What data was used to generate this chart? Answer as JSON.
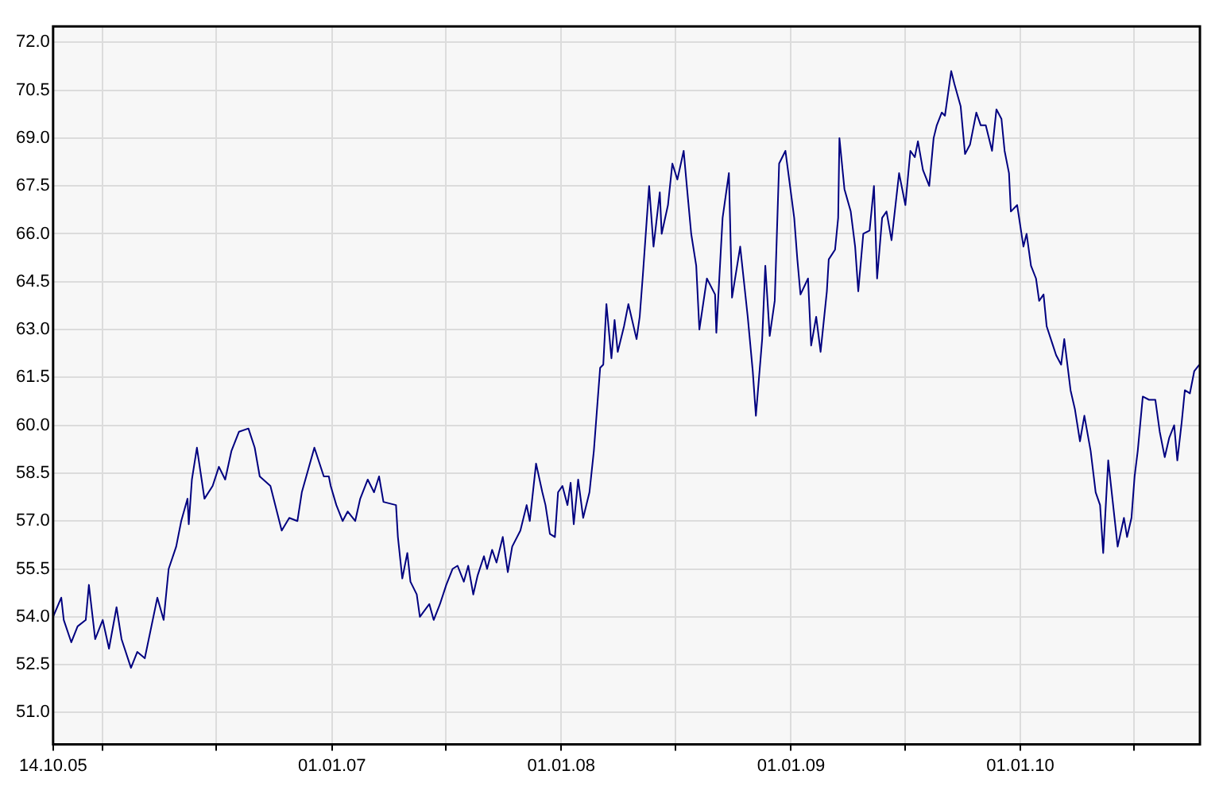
{
  "chart_data": {
    "type": "line",
    "grid": true,
    "xlim": [
      "2005-10-14",
      "2010-10-14"
    ],
    "ylim": [
      50,
      72.5
    ],
    "xticks": [
      {
        "value": "2005-10-14",
        "label": "14.10.05"
      },
      {
        "value": "2006-01-01",
        "label": null
      },
      {
        "value": "2006-07-01",
        "label": null
      },
      {
        "value": "2007-01-01",
        "label": "01.01.07"
      },
      {
        "value": "2007-07-01",
        "label": null
      },
      {
        "value": "2008-01-01",
        "label": "01.01.08"
      },
      {
        "value": "2008-07-01",
        "label": null
      },
      {
        "value": "2009-01-01",
        "label": "01.01.09"
      },
      {
        "value": "2009-07-01",
        "label": null
      },
      {
        "value": "2010-01-01",
        "label": "01.01.10"
      },
      {
        "value": "2010-07-01",
        "label": null
      }
    ],
    "yticks": [
      {
        "value": 51,
        "label": "51.0"
      },
      {
        "value": 52.5,
        "label": "52.5"
      },
      {
        "value": 54,
        "label": "54.0"
      },
      {
        "value": 55.5,
        "label": "55.5"
      },
      {
        "value": 57,
        "label": "57.0"
      },
      {
        "value": 58.5,
        "label": "58.5"
      },
      {
        "value": 60,
        "label": "60.0"
      },
      {
        "value": 61.5,
        "label": "61.5"
      },
      {
        "value": 63,
        "label": "63.0"
      },
      {
        "value": 64.5,
        "label": "64.5"
      },
      {
        "value": 66,
        "label": "66.0"
      },
      {
        "value": 67.5,
        "label": "67.5"
      },
      {
        "value": 69,
        "label": "69.0"
      },
      {
        "value": 70.5,
        "label": "70.5"
      },
      {
        "value": 72,
        "label": "72.0"
      }
    ],
    "x": [
      "2005-10-14",
      "2005-10-27",
      "2005-10-31",
      "2005-11-12",
      "2005-11-22",
      "2005-12-05",
      "2005-12-10",
      "2005-12-20",
      "2006-01-01",
      "2006-01-11",
      "2006-01-23",
      "2006-01-31",
      "2006-02-15",
      "2006-02-25",
      "2006-03-09",
      "2006-03-29",
      "2006-04-08",
      "2006-04-16",
      "2006-04-28",
      "2006-05-06",
      "2006-05-16",
      "2006-05-18",
      "2006-05-23",
      "2006-05-31",
      "2006-06-12",
      "2006-06-25",
      "2006-07-05",
      "2006-07-15",
      "2006-07-25",
      "2006-08-06",
      "2006-08-21",
      "2006-08-31",
      "2006-09-08",
      "2006-09-25",
      "2006-10-13",
      "2006-10-25",
      "2006-11-07",
      "2006-11-14",
      "2006-12-04",
      "2006-12-19",
      "2006-12-27",
      "2006-12-30",
      "2007-01-08",
      "2007-01-18",
      "2007-01-26",
      "2007-02-07",
      "2007-02-15",
      "2007-02-27",
      "2007-03-09",
      "2007-03-17",
      "2007-03-24",
      "2007-04-13",
      "2007-04-16",
      "2007-04-23",
      "2007-05-01",
      "2007-05-06",
      "2007-05-16",
      "2007-05-21",
      "2007-06-05",
      "2007-06-12",
      "2007-06-22",
      "2007-07-02",
      "2007-07-12",
      "2007-07-20",
      "2007-07-30",
      "2007-08-06",
      "2007-08-14",
      "2007-08-21",
      "2007-08-31",
      "2007-09-05",
      "2007-09-13",
      "2007-09-20",
      "2007-09-30",
      "2007-10-08",
      "2007-10-15",
      "2007-10-28",
      "2007-11-07",
      "2007-11-12",
      "2007-11-22",
      "2007-12-02",
      "2007-12-07",
      "2007-12-14",
      "2007-12-22",
      "2007-12-27",
      "2008-01-03",
      "2008-01-11",
      "2008-01-16",
      "2008-01-21",
      "2008-01-28",
      "2008-02-05",
      "2008-02-15",
      "2008-02-22",
      "2008-02-27",
      "2008-03-03",
      "2008-03-08",
      "2008-03-13",
      "2008-03-21",
      "2008-03-26",
      "2008-03-31",
      "2008-04-10",
      "2008-04-17",
      "2008-04-30",
      "2008-05-05",
      "2008-05-10",
      "2008-05-15",
      "2008-05-20",
      "2008-05-27",
      "2008-06-06",
      "2008-06-09",
      "2008-06-19",
      "2008-06-26",
      "2008-07-04",
      "2008-07-14",
      "2008-07-19",
      "2008-07-26",
      "2008-08-03",
      "2008-08-08",
      "2008-08-20",
      "2008-09-02",
      "2008-09-04",
      "2008-09-14",
      "2008-09-24",
      "2008-09-29",
      "2008-10-12",
      "2008-10-24",
      "2008-11-01",
      "2008-11-06",
      "2008-11-16",
      "2008-11-21",
      "2008-11-28",
      "2008-12-06",
      "2008-12-13",
      "2008-12-23",
      "2009-01-06",
      "2009-01-11",
      "2009-01-16",
      "2009-01-28",
      "2009-02-02",
      "2009-02-10",
      "2009-02-17",
      "2009-02-27",
      "2009-03-02",
      "2009-03-12",
      "2009-03-17",
      "2009-03-19",
      "2009-03-27",
      "2009-04-06",
      "2009-04-13",
      "2009-04-18",
      "2009-04-26",
      "2009-05-06",
      "2009-05-13",
      "2009-05-18",
      "2009-05-26",
      "2009-06-02",
      "2009-06-10",
      "2009-06-22",
      "2009-07-02",
      "2009-07-10",
      "2009-07-17",
      "2009-07-22",
      "2009-07-30",
      "2009-08-09",
      "2009-08-16",
      "2009-08-21",
      "2009-08-29",
      "2009-09-03",
      "2009-09-08",
      "2009-09-13",
      "2009-09-18",
      "2009-09-28",
      "2009-10-05",
      "2009-10-13",
      "2009-10-23",
      "2009-10-30",
      "2009-11-07",
      "2009-11-17",
      "2009-11-24",
      "2009-12-02",
      "2009-12-07",
      "2009-12-14",
      "2009-12-17",
      "2009-12-27",
      "2010-01-06",
      "2010-01-11",
      "2010-01-18",
      "2010-01-26",
      "2010-01-31",
      "2010-02-07",
      "2010-02-12",
      "2010-02-22",
      "2010-02-27",
      "2010-03-07",
      "2010-03-12",
      "2010-03-22",
      "2010-03-29",
      "2010-04-06",
      "2010-04-13",
      "2010-04-23",
      "2010-05-01",
      "2010-05-08",
      "2010-05-13",
      "2010-05-21",
      "2010-05-31",
      "2010-06-05",
      "2010-06-15",
      "2010-06-20",
      "2010-06-27",
      "2010-07-02",
      "2010-07-07",
      "2010-07-15",
      "2010-07-25",
      "2010-08-04",
      "2010-08-11",
      "2010-08-19",
      "2010-08-26",
      "2010-09-03",
      "2010-09-08",
      "2010-09-15",
      "2010-09-20",
      "2010-09-28",
      "2010-10-05",
      "2010-10-13"
    ],
    "series": [
      {
        "color": "#000080",
        "values": [
          54.0,
          54.6,
          53.9,
          53.2,
          53.7,
          53.9,
          55.0,
          53.3,
          53.9,
          53.0,
          54.3,
          53.3,
          52.4,
          52.9,
          52.7,
          54.6,
          53.9,
          55.5,
          56.2,
          57.0,
          57.7,
          56.9,
          58.3,
          59.3,
          57.7,
          58.1,
          58.7,
          58.3,
          59.2,
          59.8,
          59.9,
          59.3,
          58.4,
          58.1,
          56.7,
          57.1,
          57.0,
          57.9,
          59.3,
          58.4,
          58.4,
          58.1,
          57.5,
          57.0,
          57.3,
          57.0,
          57.7,
          58.3,
          57.9,
          58.4,
          57.6,
          57.5,
          56.5,
          55.2,
          56.0,
          55.1,
          54.7,
          54.0,
          54.4,
          53.9,
          54.4,
          55.0,
          55.5,
          55.6,
          55.1,
          55.6,
          54.7,
          55.3,
          55.9,
          55.5,
          56.1,
          55.7,
          56.5,
          55.4,
          56.2,
          56.7,
          57.5,
          57.0,
          58.8,
          57.9,
          57.5,
          56.6,
          56.5,
          57.9,
          58.1,
          57.5,
          58.2,
          56.9,
          58.3,
          57.1,
          57.9,
          59.2,
          60.5,
          61.8,
          61.9,
          63.8,
          62.1,
          63.3,
          62.3,
          63.1,
          63.8,
          62.7,
          63.4,
          64.7,
          66.1,
          67.5,
          65.6,
          67.3,
          66.0,
          66.9,
          68.2,
          67.7,
          68.6,
          67.5,
          66.0,
          65.0,
          63.0,
          64.6,
          64.1,
          62.9,
          66.5,
          67.9,
          64.0,
          65.6,
          63.4,
          61.7,
          60.3,
          62.7,
          65.0,
          62.8,
          63.9,
          68.2,
          68.6,
          66.5,
          65.2,
          64.1,
          64.6,
          62.5,
          63.4,
          62.3,
          64.2,
          65.2,
          65.5,
          66.5,
          69.0,
          67.4,
          66.7,
          65.6,
          64.2,
          66.0,
          66.1,
          67.5,
          64.6,
          66.5,
          66.7,
          65.8,
          67.9,
          66.9,
          68.6,
          68.4,
          68.9,
          68.0,
          67.5,
          69.0,
          69.4,
          69.8,
          69.7,
          70.4,
          71.1,
          70.7,
          70.0,
          68.5,
          68.8,
          69.8,
          69.4,
          69.4,
          68.6,
          69.9,
          69.6,
          68.6,
          67.9,
          66.7,
          66.9,
          65.6,
          66.0,
          65.0,
          64.6,
          63.9,
          64.1,
          63.1,
          62.5,
          62.2,
          61.9,
          62.7,
          61.1,
          60.5,
          59.5,
          60.3,
          59.2,
          57.9,
          57.5,
          56.0,
          58.9,
          57.1,
          56.2,
          57.1,
          56.5,
          57.1,
          58.4,
          59.2,
          60.9,
          60.8,
          60.8,
          59.8,
          59.0,
          59.6,
          60.0,
          58.9,
          60.1,
          61.1,
          61.0,
          61.7,
          61.9
        ]
      }
    ]
  }
}
